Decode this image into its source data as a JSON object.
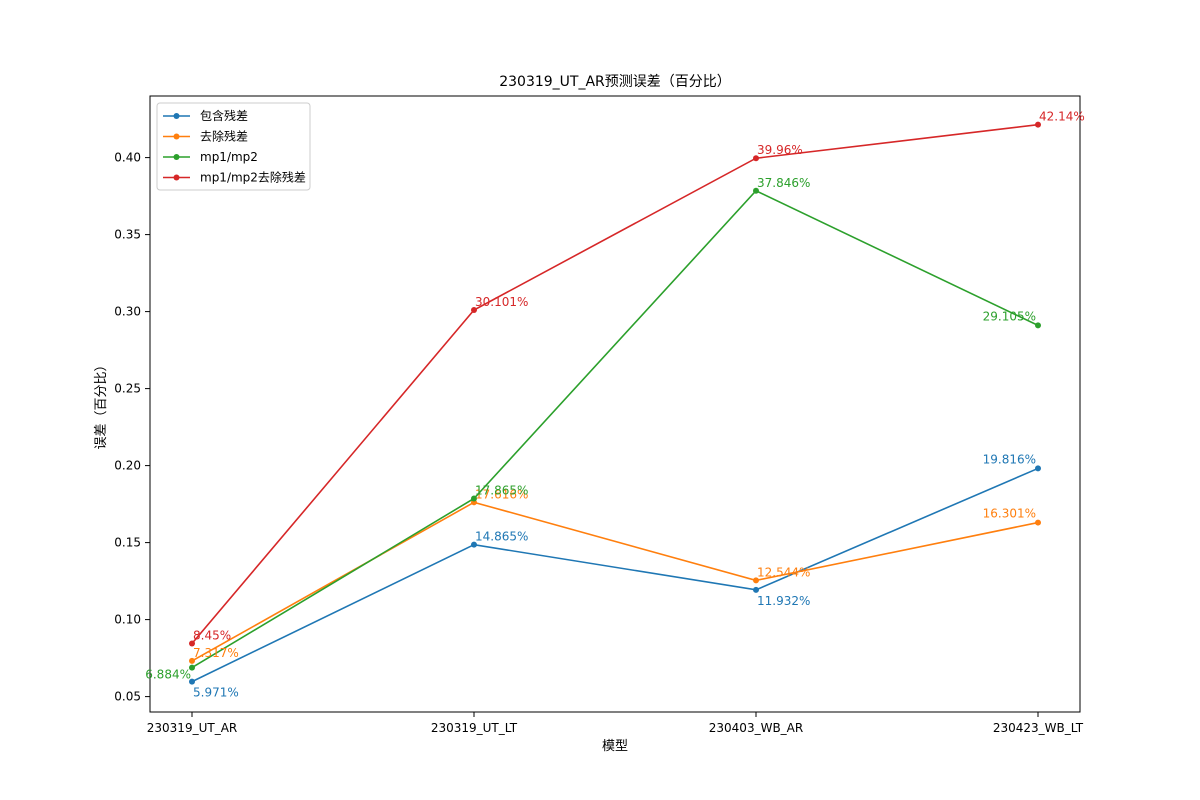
{
  "chart_data": {
    "type": "line",
    "title": "230319_UT_AR预测误差（百分比）",
    "xlabel": "模型",
    "ylabel": "误差（百分比）",
    "categories": [
      "230319_UT_AR",
      "230319_UT_LT",
      "230403_WB_AR",
      "230423_WB_LT"
    ],
    "ylim": [
      0.04,
      0.44
    ],
    "yticks": [
      0.05,
      0.1,
      0.15,
      0.2,
      0.25,
      0.3,
      0.35,
      0.4
    ],
    "ytick_labels": [
      "0.05",
      "0.10",
      "0.15",
      "0.20",
      "0.25",
      "0.30",
      "0.35",
      "0.40"
    ],
    "grid": false,
    "legend_position": "top-left",
    "series": [
      {
        "name": "包含残差",
        "color": "#1f77b4",
        "values": [
          0.05971,
          0.14865,
          0.11932,
          0.19816
        ],
        "labels": [
          "5.971%",
          "14.865%",
          "11.932%",
          "19.816%"
        ]
      },
      {
        "name": "去除残差",
        "color": "#ff7f0e",
        "values": [
          0.07317,
          0.17616,
          0.12544,
          0.16301
        ],
        "labels": [
          "7.317%",
          "17.616%",
          "12.544%",
          "16.301%"
        ]
      },
      {
        "name": "mp1/mp2",
        "color": "#2ca02c",
        "values": [
          0.06884,
          0.17865,
          0.37846,
          0.29105
        ],
        "labels": [
          "6.884%",
          "17.865%",
          "37.846%",
          "29.105%"
        ]
      },
      {
        "name": "mp1/mp2去除残差",
        "color": "#d62728",
        "values": [
          0.0845,
          0.30101,
          0.3996,
          0.4214
        ],
        "labels": [
          "8.45%",
          "30.101%",
          "39.96%",
          "42.14%"
        ]
      }
    ]
  }
}
